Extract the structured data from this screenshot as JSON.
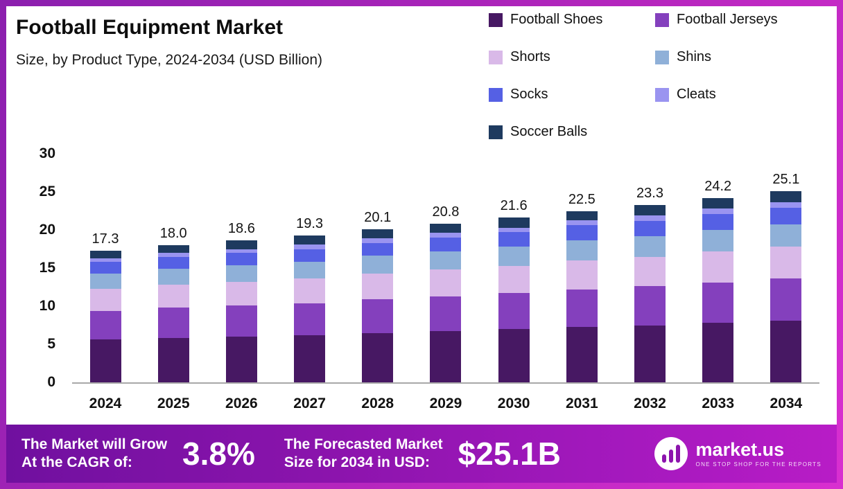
{
  "header": {
    "title": "Football Equipment Market",
    "subtitle": "Size, by Product Type, 2024-2034 (USD Billion)"
  },
  "chart_data": {
    "type": "bar",
    "stacked": true,
    "title": "Football Equipment Market Size, by Product Type, 2024-2034 (USD Billion)",
    "categories": [
      "2024",
      "2025",
      "2026",
      "2027",
      "2028",
      "2029",
      "2030",
      "2031",
      "2032",
      "2033",
      "2034"
    ],
    "totals": [
      "17.3",
      "18.0",
      "18.6",
      "19.3",
      "20.1",
      "20.8",
      "21.6",
      "22.5",
      "23.3",
      "24.2",
      "25.1"
    ],
    "series": [
      {
        "name": "Football Shoes",
        "color": "#471863",
        "values": [
          5.6,
          5.8,
          6.0,
          6.2,
          6.5,
          6.7,
          7.0,
          7.3,
          7.5,
          7.8,
          8.1
        ]
      },
      {
        "name": "Football Jerseys",
        "color": "#8440bd",
        "values": [
          3.8,
          4.0,
          4.1,
          4.2,
          4.4,
          4.6,
          4.7,
          4.9,
          5.1,
          5.3,
          5.5
        ]
      },
      {
        "name": "Shorts",
        "color": "#d9b9e8",
        "values": [
          2.9,
          3.0,
          3.1,
          3.2,
          3.4,
          3.5,
          3.6,
          3.8,
          3.9,
          4.1,
          4.2
        ]
      },
      {
        "name": "Shins",
        "color": "#8fb0d8",
        "values": [
          2.0,
          2.1,
          2.2,
          2.2,
          2.3,
          2.4,
          2.5,
          2.6,
          2.7,
          2.8,
          2.9
        ]
      },
      {
        "name": "Socks",
        "color": "#5560e4",
        "values": [
          1.5,
          1.6,
          1.6,
          1.7,
          1.7,
          1.8,
          1.9,
          2.0,
          2.0,
          2.1,
          2.2
        ]
      },
      {
        "name": "Cleats",
        "color": "#9a94f0",
        "values": [
          0.5,
          0.5,
          0.5,
          0.6,
          0.6,
          0.6,
          0.6,
          0.7,
          0.7,
          0.7,
          0.7
        ]
      },
      {
        "name": "Soccer Balls",
        "color": "#1e3a5f",
        "values": [
          1.0,
          1.0,
          1.1,
          1.2,
          1.2,
          1.2,
          1.3,
          1.2,
          1.4,
          1.4,
          1.5
        ]
      }
    ],
    "ylim": [
      0,
      30
    ],
    "yticks": [
      0,
      5,
      10,
      15,
      20,
      25,
      30
    ],
    "grid": false,
    "legend_position": "top-right"
  },
  "footer": {
    "cagr_label_line1": "The Market will Grow",
    "cagr_label_line2": "At the CAGR of:",
    "cagr_value": "3.8%",
    "forecast_label_line1": "The Forecasted Market",
    "forecast_label_line2": "Size for 2034 in USD:",
    "forecast_value": "$25.1B",
    "brand_name": "market.us",
    "brand_tagline": "ONE STOP SHOP FOR THE REPORTS"
  },
  "colors": {
    "frame_gradient_start": "#8b1fae",
    "frame_gradient_end": "#d92fd0",
    "footer_gradient_start": "#70109f",
    "footer_gradient_end": "#b81cc6"
  }
}
